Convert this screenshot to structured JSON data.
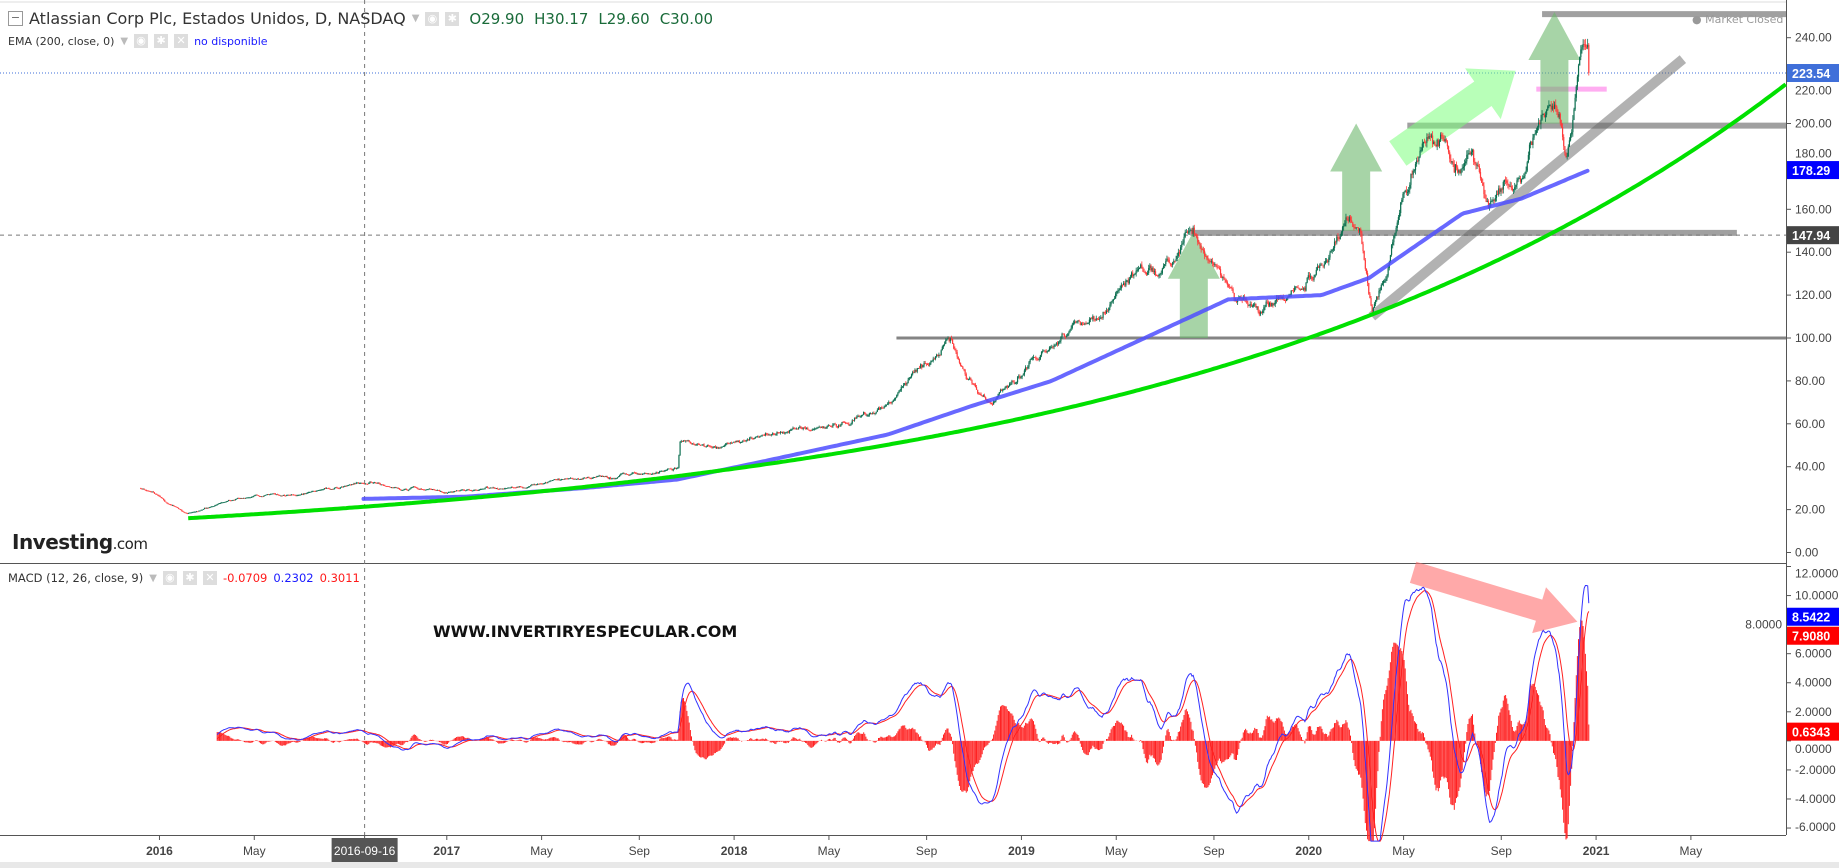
{
  "header": {
    "title": "Atlassian Corp Plc, Estados Unidos, D, NASDAQ",
    "open": "O29.90",
    "high": "H30.17",
    "low": "L29.60",
    "close": "C30.00",
    "ema_label": "EMA (200, close, 0)",
    "ema_value": "no disponible",
    "macd_label": "MACD (12, 26, close, 9)",
    "macd_values": [
      "-0.0709",
      "0.2302",
      "0.3011"
    ],
    "market_status": "Market Closed"
  },
  "logo": {
    "brand": "Investing",
    "suffix": ".com"
  },
  "watermark": "WWW.INVERTIRYESPECULAR.COM",
  "colors": {
    "up": "#0b6e4f",
    "down": "#ff3b3b",
    "ema": "#4d4dff",
    "trend": "#00e000",
    "macd": "#3333ff",
    "signal": "#ff2222"
  },
  "chart_data": [
    {
      "type": "candlestick",
      "title": "Atlassian Corp Plc, D",
      "x_range": [
        2015.445,
        2021.661
      ],
      "ylim": [
        0,
        250
      ],
      "y_ticks": [
        "0.00",
        "20.00",
        "40.00",
        "60.00",
        "80.00",
        "100.00",
        "120.00",
        "140.00",
        "160.00",
        "180.00",
        "200.00",
        "220.00",
        "240.00"
      ],
      "x_ticks": [
        {
          "t": 2016.0,
          "label": "2016"
        },
        {
          "t": 2016.33,
          "label": "May"
        },
        {
          "t": 2016.714,
          "label": "2016-09-16",
          "highlight": true
        },
        {
          "t": 2017.0,
          "label": "2017"
        },
        {
          "t": 2017.33,
          "label": "May"
        },
        {
          "t": 2017.67,
          "label": "Sep"
        },
        {
          "t": 2018.0,
          "label": "2018"
        },
        {
          "t": 2018.33,
          "label": "May"
        },
        {
          "t": 2018.67,
          "label": "Sep"
        },
        {
          "t": 2019.0,
          "label": "2019"
        },
        {
          "t": 2019.33,
          "label": "May"
        },
        {
          "t": 2019.67,
          "label": "Sep"
        },
        {
          "t": 2020.0,
          "label": "2020"
        },
        {
          "t": 2020.33,
          "label": "May"
        },
        {
          "t": 2020.67,
          "label": "Sep"
        },
        {
          "t": 2021.0,
          "label": "2021"
        },
        {
          "t": 2021.33,
          "label": "May"
        }
      ],
      "price_keypoints": [
        [
          2015.935,
          30
        ],
        [
          2016.098,
          18
        ],
        [
          2016.261,
          24
        ],
        [
          2016.71,
          33
        ],
        [
          2016.996,
          28
        ],
        [
          2017.363,
          33
        ],
        [
          2017.731,
          38
        ],
        [
          2017.804,
          40
        ],
        [
          2017.812,
          52
        ],
        [
          2017.935,
          48
        ],
        [
          2018.098,
          55
        ],
        [
          2018.302,
          58
        ],
        [
          2018.547,
          70
        ],
        [
          2018.669,
          90
        ],
        [
          2018.751,
          97
        ],
        [
          2018.812,
          78
        ],
        [
          2018.894,
          70
        ],
        [
          2018.955,
          80
        ],
        [
          2019.118,
          100
        ],
        [
          2019.282,
          115
        ],
        [
          2019.363,
          130
        ],
        [
          2019.527,
          140
        ],
        [
          2019.588,
          148
        ],
        [
          2019.69,
          130
        ],
        [
          2019.833,
          112
        ],
        [
          2019.935,
          120
        ],
        [
          2020.057,
          128
        ],
        [
          2020.139,
          152
        ],
        [
          2020.18,
          150
        ],
        [
          2020.22,
          115
        ],
        [
          2020.282,
          140
        ],
        [
          2020.343,
          170
        ],
        [
          2020.404,
          190
        ],
        [
          2020.506,
          185
        ],
        [
          2020.567,
          195
        ],
        [
          2020.629,
          165
        ],
        [
          2020.71,
          170
        ],
        [
          2020.771,
          190
        ],
        [
          2020.833,
          215
        ],
        [
          2020.873,
          205
        ],
        [
          2020.894,
          180
        ],
        [
          2020.914,
          195
        ],
        [
          2020.947,
          225
        ],
        [
          2020.963,
          230
        ],
        [
          2020.976,
          223.54
        ]
      ],
      "ema200_keypoints": [
        [
          2016.71,
          25
        ],
        [
          2017.065,
          26
        ],
        [
          2017.473,
          30
        ],
        [
          2017.8,
          34
        ],
        [
          2018.085,
          42
        ],
        [
          2018.535,
          55
        ],
        [
          2018.82,
          68
        ],
        [
          2019.105,
          80
        ],
        [
          2019.51,
          105
        ],
        [
          2019.72,
          118
        ],
        [
          2020.045,
          120
        ],
        [
          2020.21,
          128
        ],
        [
          2020.535,
          158
        ],
        [
          2020.74,
          165
        ],
        [
          2020.976,
          178.29
        ]
      ],
      "trend_curve": {
        "start_t": 2016.1,
        "start_value": 16,
        "growth_per_year": 0.47,
        "end_t": 2021.661
      },
      "levels": [
        {
          "value": 100,
          "from": 2018.565,
          "to": 2021.661
        },
        {
          "value": 149,
          "from": 2019.588,
          "to": 2021.49
        },
        {
          "value": 199,
          "from": 2020.343,
          "to": 2021.661
        },
        {
          "value": 251,
          "from": 2020.812,
          "to": 2021.661
        }
      ],
      "pink_level": {
        "value": 216,
        "from": 2020.792,
        "to": 2021.037
      },
      "trendline": {
        "from": [
          2020.22,
          110
        ],
        "to": [
          2021.302,
          230
        ]
      },
      "arrows": [
        {
          "from": [
            2019.6,
            100
          ],
          "to": [
            2019.6,
            150
          ]
        },
        {
          "from": [
            2020.165,
            150
          ],
          "to": [
            2020.165,
            200
          ]
        },
        {
          "from": [
            2020.855,
            200
          ],
          "to": [
            2020.855,
            252
          ]
        },
        {
          "from": [
            2020.31,
            186
          ],
          "to": [
            2020.72,
            224.6
          ],
          "light": true
        }
      ],
      "crosshair": {
        "t": 2016.714,
        "value": 147.94
      },
      "tags": [
        {
          "value": 223.54,
          "label": "223.54",
          "color": "#3f6fd9",
          "dotted": true
        },
        {
          "value": 178.29,
          "label": "178.29",
          "color": "#0000ff"
        },
        {
          "value": 147.94,
          "label": "147.94",
          "color": "#444444"
        }
      ]
    },
    {
      "type": "macd",
      "params": [
        12,
        26,
        9
      ],
      "ylim": [
        -7,
        12
      ],
      "y_ticks": [
        "-6.0000",
        "-4.0000",
        "-2.0000",
        "0.0000",
        "2.0000",
        "4.0000",
        "6.0000",
        "8.0000",
        "10.0000",
        "12.0000"
      ],
      "tags": [
        {
          "value": 8.5422,
          "label": "8.5422",
          "color": "#0000ff"
        },
        {
          "value": 7.908,
          "label": "7.9080",
          "color": "#ff0000"
        },
        {
          "value": 0.6343,
          "label": "0.6343",
          "color": "#ff0000"
        }
      ],
      "divergence_arrow": {
        "from": [
          2020.363,
          11.6
        ],
        "to": [
          2020.935,
          8.2
        ]
      }
    }
  ]
}
